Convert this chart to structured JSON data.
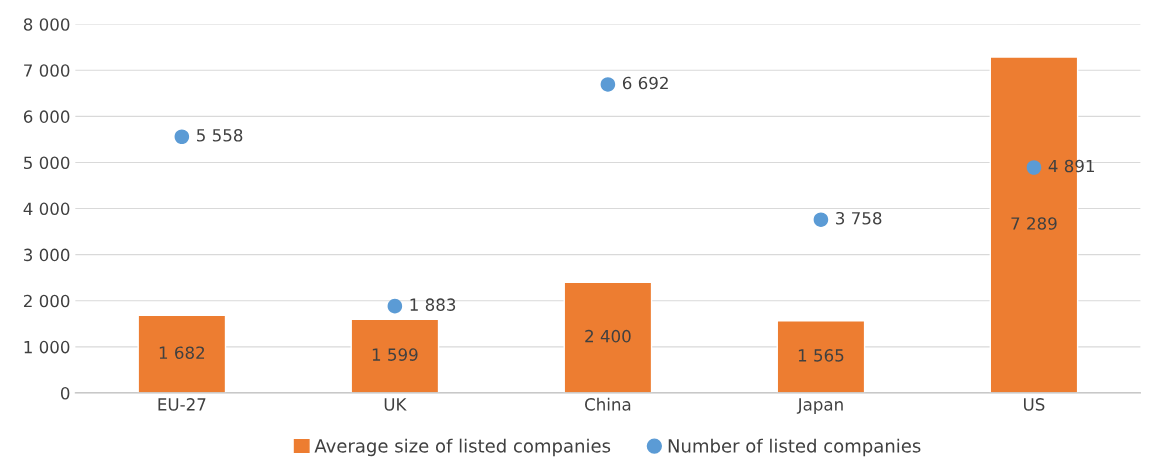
{
  "chart_data": {
    "type": "bar",
    "categories": [
      "EU-27",
      "UK",
      "China",
      "Japan",
      "US"
    ],
    "series": [
      {
        "name": "Average size of listed companies",
        "color": "#ed7d31",
        "values": [
          1682,
          1599,
          2400,
          1565,
          7289
        ],
        "value_labels": [
          "1 682",
          "1 599",
          "2 400",
          "1 565",
          "7 289"
        ]
      },
      {
        "name": "Number of listed companies",
        "type": "scatter",
        "color": "#5b9bd5",
        "values": [
          5558,
          1883,
          6692,
          3758,
          4891
        ],
        "value_labels": [
          "5 558",
          "1 883",
          "6 692",
          "3 758",
          "4 891"
        ]
      }
    ],
    "ylim": [
      0,
      8000
    ],
    "yticks": [
      {
        "value": 0,
        "label": "0"
      },
      {
        "value": 1000,
        "label": "1 000"
      },
      {
        "value": 2000,
        "label": "2 000"
      },
      {
        "value": 3000,
        "label": "3 000"
      },
      {
        "value": 4000,
        "label": "4 000"
      },
      {
        "value": 5000,
        "label": "5 000"
      },
      {
        "value": 6000,
        "label": "6 000"
      },
      {
        "value": 7000,
        "label": "7 000"
      },
      {
        "value": 8000,
        "label": "8 000"
      }
    ],
    "grid": "y",
    "legend": "bottom",
    "marker": "circle"
  }
}
